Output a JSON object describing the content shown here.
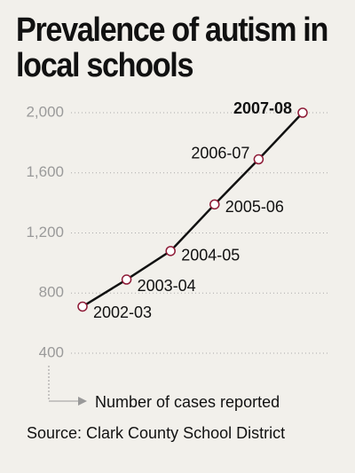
{
  "chart_data": {
    "type": "line",
    "title": "Prevalence of autism in local schools",
    "y_axis_label": "Number of cases reported",
    "source": "Source: Clark County School District",
    "categories": [
      "2002-03",
      "2003-04",
      "2004-05",
      "2005-06",
      "2006-07",
      "2007-08"
    ],
    "values": [
      710,
      890,
      1080,
      1390,
      1690,
      2000
    ],
    "color": "#111111",
    "marker_color": "#8e1a36",
    "highlight": {
      "index": 5,
      "color": "#a01e3e"
    },
    "ylim": [
      400,
      2000
    ],
    "yticks": [
      {
        "value": 2000,
        "label": "2,000"
      },
      {
        "value": 1600,
        "label": "1,600"
      },
      {
        "value": 1200,
        "label": "1,200"
      },
      800,
      400
    ],
    "grid": true
  }
}
